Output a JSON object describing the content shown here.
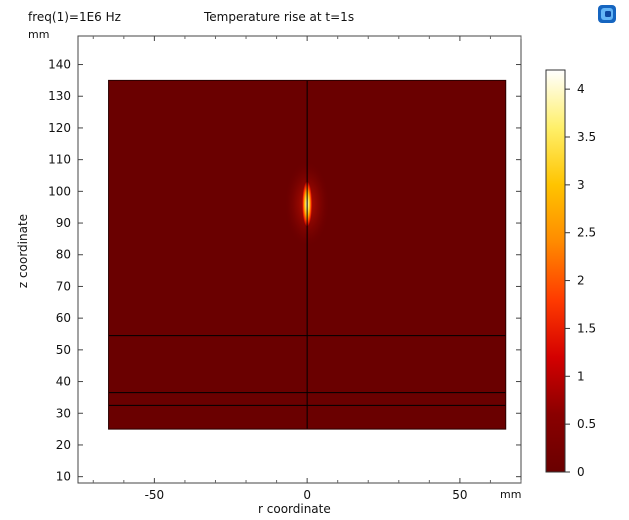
{
  "header": {
    "param_label": "freq(1)=1E6 Hz",
    "title": "Temperature rise at t=1s",
    "y_unit": "mm",
    "x_unit": "mm"
  },
  "toolbar": {
    "icon": "comsol-logo-icon"
  },
  "chart_data": {
    "type": "heatmap",
    "title": "Temperature rise at t=1s",
    "xlabel": "r coordinate",
    "ylabel": "z coordinate",
    "x_unit": "mm",
    "y_unit": "mm",
    "xlim": [
      -75,
      70
    ],
    "ylim": [
      8,
      149
    ],
    "x_ticks": [
      -50,
      0,
      50
    ],
    "y_ticks": [
      10,
      20,
      30,
      40,
      50,
      60,
      70,
      80,
      90,
      100,
      110,
      120,
      130,
      140
    ],
    "domain": {
      "r_min": -65,
      "r_max": 65,
      "z_min": 25,
      "z_max": 135
    },
    "domain_lines": {
      "vertical_r": [
        0
      ],
      "horizontal_z": [
        32.5,
        36.5,
        54.5
      ]
    },
    "hotspot": {
      "r": 0,
      "z": 96,
      "half_width_r": 1.6,
      "half_height_z": 7,
      "peak": 4.2
    },
    "background_value": 0,
    "colorbar": {
      "min": 0,
      "max": 4.2,
      "ticks": [
        0,
        0.5,
        1,
        1.5,
        2,
        2.5,
        3,
        3.5,
        4
      ],
      "tick_labels": [
        "0",
        "0.5",
        "1",
        "1.5",
        "2",
        "2.5",
        "3",
        "3.5",
        "4"
      ],
      "colormap": "heat",
      "colors": [
        "#6a0000",
        "#8a0000",
        "#d40000",
        "#ff3b00",
        "#ff8a00",
        "#ffc400",
        "#fff06a",
        "#ffffff"
      ]
    }
  }
}
